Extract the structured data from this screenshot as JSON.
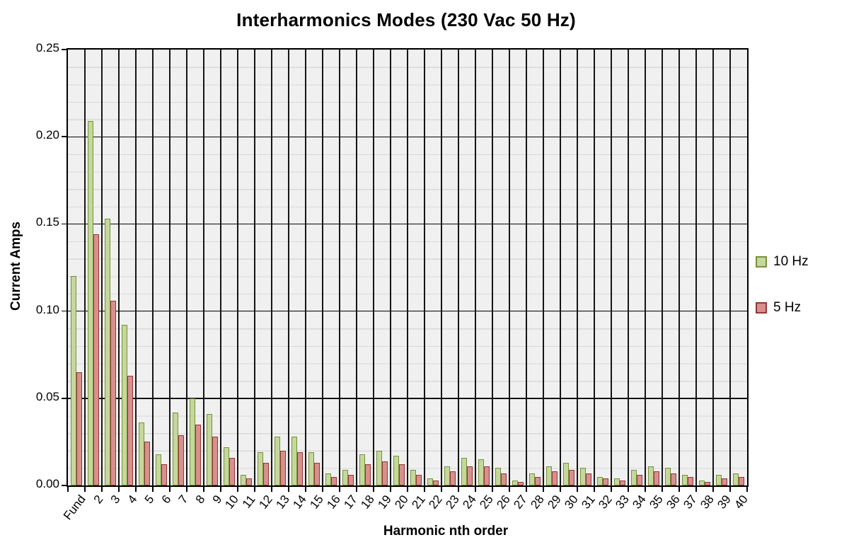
{
  "colors": {
    "series_green_fill": "#c5d79b",
    "series_green_border": "#76923c",
    "series_red_fill": "#d7908e",
    "series_red_border": "#953734",
    "plot_background": "#f0f0f0",
    "minor_gridline": "#d9d9d9",
    "major_gridline": "#111111",
    "axis_line": "#000000",
    "text": "#000000"
  },
  "chart_data": {
    "type": "bar",
    "title": "Interharmonics Modes (230 Vac 50 Hz)",
    "xlabel": "Harmonic nth order",
    "ylabel": "Current Amps",
    "ylim": [
      0,
      0.25
    ],
    "ytick_step": 0.05,
    "minor_ytick_step": 0.01,
    "ytick_labels": [
      "0.25",
      "0.20",
      "0.15",
      "0.10",
      "0.05",
      "0.00"
    ],
    "grid": "major-and-minor-horizontal, vertical-category-lines",
    "legend_position": "right",
    "categories": [
      "Fund",
      "2",
      "3",
      "4",
      "5",
      "6",
      "7",
      "8",
      "9",
      "10",
      "11",
      "12",
      "13",
      "14",
      "15",
      "16",
      "17",
      "18",
      "19",
      "20",
      "21",
      "22",
      "23",
      "24",
      "25",
      "26",
      "27",
      "28",
      "29",
      "30",
      "31",
      "32",
      "33",
      "34",
      "35",
      "36",
      "37",
      "38",
      "39",
      "40"
    ],
    "series": [
      {
        "name": "10 Hz",
        "fill": "#c5d79b",
        "border": "#76923c",
        "values": [
          0.12,
          0.209,
          0.153,
          0.092,
          0.036,
          0.018,
          0.042,
          0.05,
          0.041,
          0.022,
          0.006,
          0.019,
          0.028,
          0.028,
          0.019,
          0.007,
          0.009,
          0.018,
          0.02,
          0.017,
          0.009,
          0.004,
          0.011,
          0.016,
          0.015,
          0.01,
          0.003,
          0.007,
          0.011,
          0.013,
          0.01,
          0.005,
          0.004,
          0.009,
          0.011,
          0.01,
          0.006,
          0.003,
          0.006,
          0.007
        ]
      },
      {
        "name": "5 Hz",
        "fill": "#d7908e",
        "border": "#953734",
        "values": [
          0.065,
          0.144,
          0.106,
          0.063,
          0.025,
          0.012,
          0.029,
          0.035,
          0.028,
          0.016,
          0.004,
          0.013,
          0.02,
          0.019,
          0.013,
          0.005,
          0.006,
          0.012,
          0.014,
          0.012,
          0.006,
          0.003,
          0.008,
          0.011,
          0.011,
          0.007,
          0.002,
          0.005,
          0.008,
          0.009,
          0.007,
          0.004,
          0.003,
          0.006,
          0.008,
          0.007,
          0.005,
          0.002,
          0.004,
          0.005
        ]
      }
    ]
  }
}
